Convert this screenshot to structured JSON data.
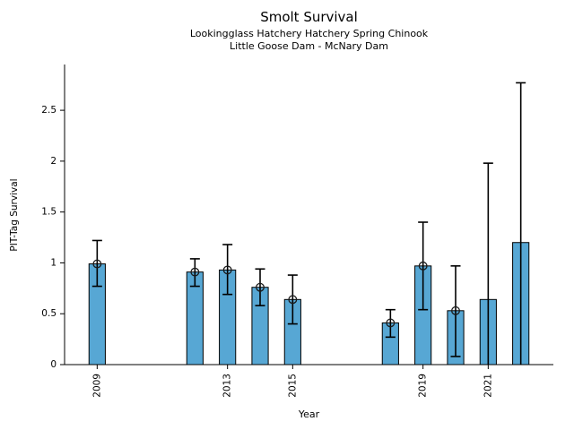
{
  "chart_data": {
    "type": "bar",
    "title": "Smolt Survival",
    "subtitle1": "Lookingglass Hatchery Hatchery Spring Chinook",
    "subtitle2": "Little Goose Dam - McNary Dam",
    "xlabel": "Year",
    "ylabel": "PIT-Tag Survival",
    "x": [
      2009,
      2012,
      2013,
      2014,
      2015,
      2018,
      2019,
      2020,
      2021,
      2022
    ],
    "values": [
      0.99,
      0.91,
      0.93,
      0.76,
      0.64,
      0.41,
      0.97,
      0.53,
      0.64,
      1.2
    ],
    "error_lower": [
      0.77,
      0.77,
      0.69,
      0.58,
      0.4,
      0.27,
      0.54,
      0.08,
      0.0,
      0.0
    ],
    "error_upper": [
      1.22,
      1.04,
      1.18,
      0.94,
      0.88,
      0.54,
      1.4,
      0.97,
      1.98,
      2.77
    ],
    "point_marker": [
      true,
      true,
      true,
      true,
      true,
      true,
      true,
      true,
      false,
      false
    ],
    "xticks": [
      2009,
      2013,
      2015,
      2019,
      2021
    ],
    "yticks": [
      0,
      0.5,
      1,
      1.5,
      2,
      2.5
    ],
    "xlim": [
      2008,
      2023
    ],
    "ylim": [
      0,
      2.95
    ],
    "bar_width_years": 0.5,
    "grid": false,
    "legend": null,
    "colors": {
      "bar_fill": "#57A7D4",
      "bar_edge": "#000000",
      "error_bar": "#000000",
      "marker_edge": "#1a1a1a",
      "axis": "#000000",
      "text": "#000000"
    }
  }
}
